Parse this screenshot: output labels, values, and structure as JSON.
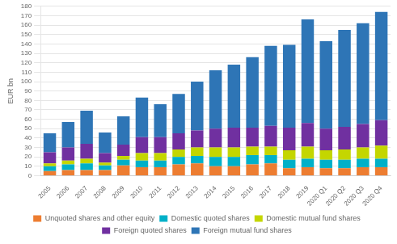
{
  "chart_data": {
    "type": "bar",
    "stacked": true,
    "ylabel": "EUR bn",
    "categories": [
      "2005",
      "2006",
      "2007",
      "2008",
      "2009",
      "2010",
      "2011",
      "2012",
      "2013",
      "2014",
      "2015",
      "2016",
      "2017",
      "2018",
      "2019",
      "2020 Q1",
      "2020 Q2",
      "2020 Q3",
      "2020 Q4"
    ],
    "series": [
      {
        "name": "Unquoted shares and other equity",
        "color": "#ed7d31",
        "values": [
          5,
          6,
          6,
          6,
          11,
          9,
          9,
          12,
          13,
          10,
          10,
          12,
          13,
          8,
          9,
          8,
          8,
          9,
          9
        ]
      },
      {
        "name": "Domestic quoted shares",
        "color": "#00b0c8",
        "values": [
          5,
          6,
          7,
          5,
          6,
          7,
          7,
          8,
          8,
          10,
          10,
          10,
          9,
          9,
          9,
          9,
          9,
          9,
          9
        ]
      },
      {
        "name": "Domestic mutual fund shares",
        "color": "#c4d600",
        "values": [
          3,
          4,
          5,
          3,
          4,
          8,
          8,
          8,
          9,
          10,
          10,
          9,
          9,
          10,
          13,
          10,
          11,
          12,
          14
        ]
      },
      {
        "name": "Foreign quoted shares",
        "color": "#7030a0",
        "values": [
          12,
          14,
          16,
          10,
          12,
          17,
          17,
          17,
          18,
          20,
          21,
          20,
          22,
          24,
          25,
          23,
          24,
          25,
          27
        ]
      },
      {
        "name": "Foreign mutual fund shares",
        "color": "#2e75b6",
        "values": [
          20,
          27,
          35,
          22,
          30,
          42,
          35,
          42,
          52,
          62,
          67,
          75,
          85,
          88,
          110,
          93,
          103,
          107,
          115
        ]
      }
    ],
    "ylim": [
      0,
      180
    ],
    "yticks": [
      0,
      10,
      20,
      30,
      40,
      50,
      60,
      70,
      80,
      90,
      100,
      110,
      120,
      130,
      140,
      150,
      160,
      170,
      180
    ],
    "grid": true,
    "legend": "bottom"
  }
}
